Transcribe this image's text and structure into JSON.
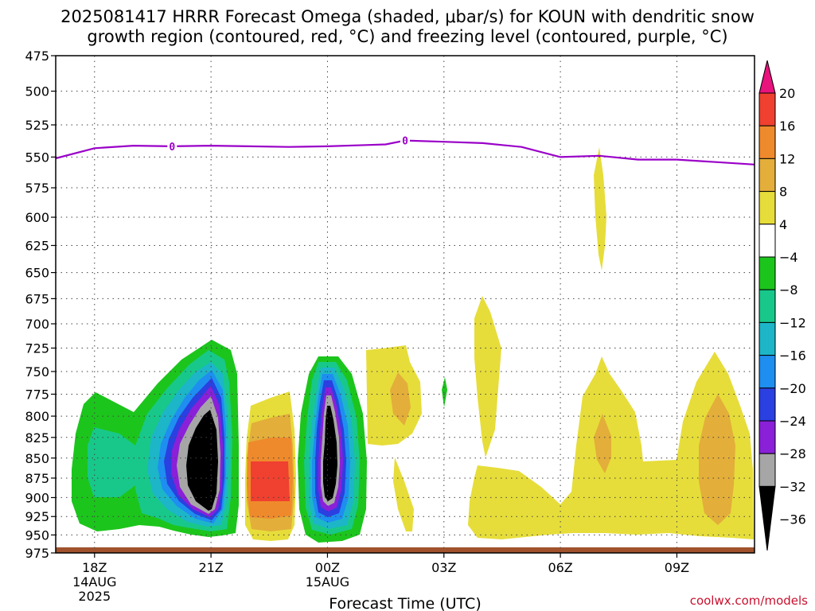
{
  "chart_data": {
    "type": "heatmap",
    "title_line1": "2025081417 HRRR Forecast Omega (shaded, μbar/s) for KOUN with dendritic snow",
    "title_line2": "growth region (contoured, red, °C) and freezing level (contoured, purple, °C)",
    "xlabel": "Forecast Time (UTC)",
    "ylabel": "",
    "y_scale": "log-pressure (inverted)",
    "ylim": [
      975,
      475
    ],
    "y_ticks": [
      "475",
      "500",
      "525",
      "550",
      "575",
      "600",
      "625",
      "650",
      "675",
      "700",
      "725",
      "750",
      "775",
      "800",
      "825",
      "850",
      "875",
      "900",
      "925",
      "950",
      "975"
    ],
    "x_ticks": [
      {
        "hour": 18,
        "label": "18Z",
        "sub1": "14AUG",
        "sub2": "2025"
      },
      {
        "hour": 21,
        "label": "21Z",
        "sub1": "",
        "sub2": ""
      },
      {
        "hour": 24,
        "label": "00Z",
        "sub1": "15AUG",
        "sub2": ""
      },
      {
        "hour": 27,
        "label": "03Z",
        "sub1": "",
        "sub2": ""
      },
      {
        "hour": 30,
        "label": "06Z",
        "sub1": "",
        "sub2": ""
      },
      {
        "hour": 33,
        "label": "09Z",
        "sub1": "",
        "sub2": ""
      }
    ],
    "xlim_hours": [
      17,
      35
    ],
    "grid": true,
    "colorbar": {
      "labels": [
        "20",
        "16",
        "12",
        "8",
        "4",
        "−4",
        "−8",
        "−12",
        "−16",
        "−20",
        "−24",
        "−28",
        "−32",
        "−36"
      ],
      "colors": [
        "#e8137d",
        "#f04030",
        "#ef8a2c",
        "#e3ae3a",
        "#e6dd3a",
        "#ffffff",
        "#1cc51c",
        "#18c88a",
        "#1cb6c8",
        "#1e8ef0",
        "#2a40e0",
        "#8a20d8",
        "#a6a6a6",
        "#000000"
      ]
    },
    "freezing_level": {
      "contour_label": "0",
      "label_hours": [
        20,
        26
      ],
      "points": [
        [
          17,
          551
        ],
        [
          18,
          543
        ],
        [
          19,
          541
        ],
        [
          20,
          541.5
        ],
        [
          21,
          541
        ],
        [
          22,
          541.5
        ],
        [
          23,
          542
        ],
        [
          24,
          541.5
        ],
        [
          25,
          540.5
        ],
        [
          25.5,
          540
        ],
        [
          26,
          537
        ],
        [
          27,
          538
        ],
        [
          28,
          539
        ],
        [
          29,
          542
        ],
        [
          30,
          550
        ],
        [
          31,
          549
        ],
        [
          32,
          552
        ],
        [
          33,
          552
        ],
        [
          34,
          554
        ],
        [
          35,
          556
        ]
      ]
    },
    "omega_regions": [
      {
        "level": "-12",
        "color": "#18c88a",
        "hours": [
          17.4,
          19.3
        ],
        "p_top": 790,
        "p_bot": 955
      },
      {
        "level": "-8",
        "color": "#1cc51c",
        "hours": [
          17.4,
          21.9
        ],
        "p_top": 720,
        "p_bot": 955
      },
      {
        "level": "-36",
        "color": "#000000",
        "hours": [
          20.4,
          21.1
        ],
        "p_top": 798,
        "p_bot": 915
      },
      {
        "level": "12",
        "color": "#ef8a2c",
        "hours": [
          22.2,
          23.0
        ],
        "p_top": 820,
        "p_bot": 935
      },
      {
        "level": "16",
        "color": "#f04030",
        "hours": [
          22.3,
          22.9
        ],
        "p_top": 858,
        "p_bot": 918
      },
      {
        "level": "-36",
        "color": "#000000",
        "hours": [
          23.6,
          24.4
        ],
        "p_top": 800,
        "p_bot": 918
      },
      {
        "level": "4",
        "color": "#e6dd3a",
        "hours": [
          27.9,
          35
        ],
        "p_top": 730,
        "p_bot": 955
      }
    ]
  }
}
